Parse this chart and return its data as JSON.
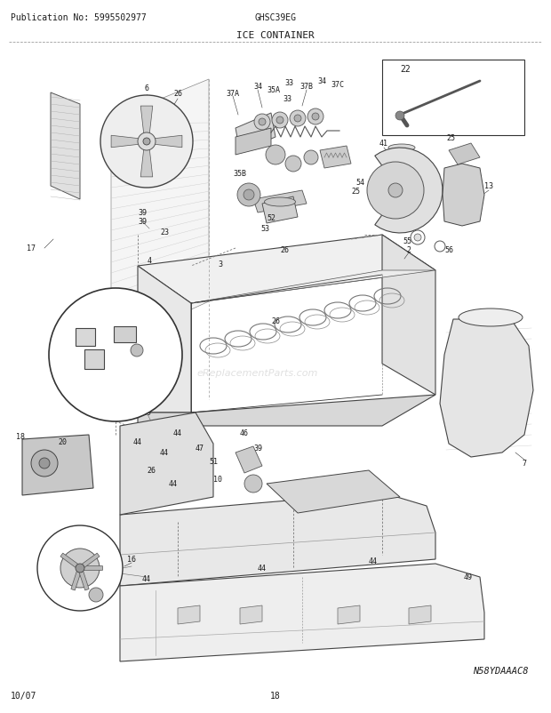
{
  "publication_no": "Publication No: 5995502977",
  "model": "GHSC39EG",
  "title": "ICE CONTAINER",
  "date": "10/07",
  "page": "18",
  "diagram_code": "N58YDAAAC8",
  "bg_color": "#ffffff",
  "text_color": "#1a1a1a",
  "header_font_size": 7.0,
  "title_font_size": 8.0,
  "footer_font_size": 7.0,
  "label_font_size": 6.0,
  "watermark": "eReplacementParts.com"
}
